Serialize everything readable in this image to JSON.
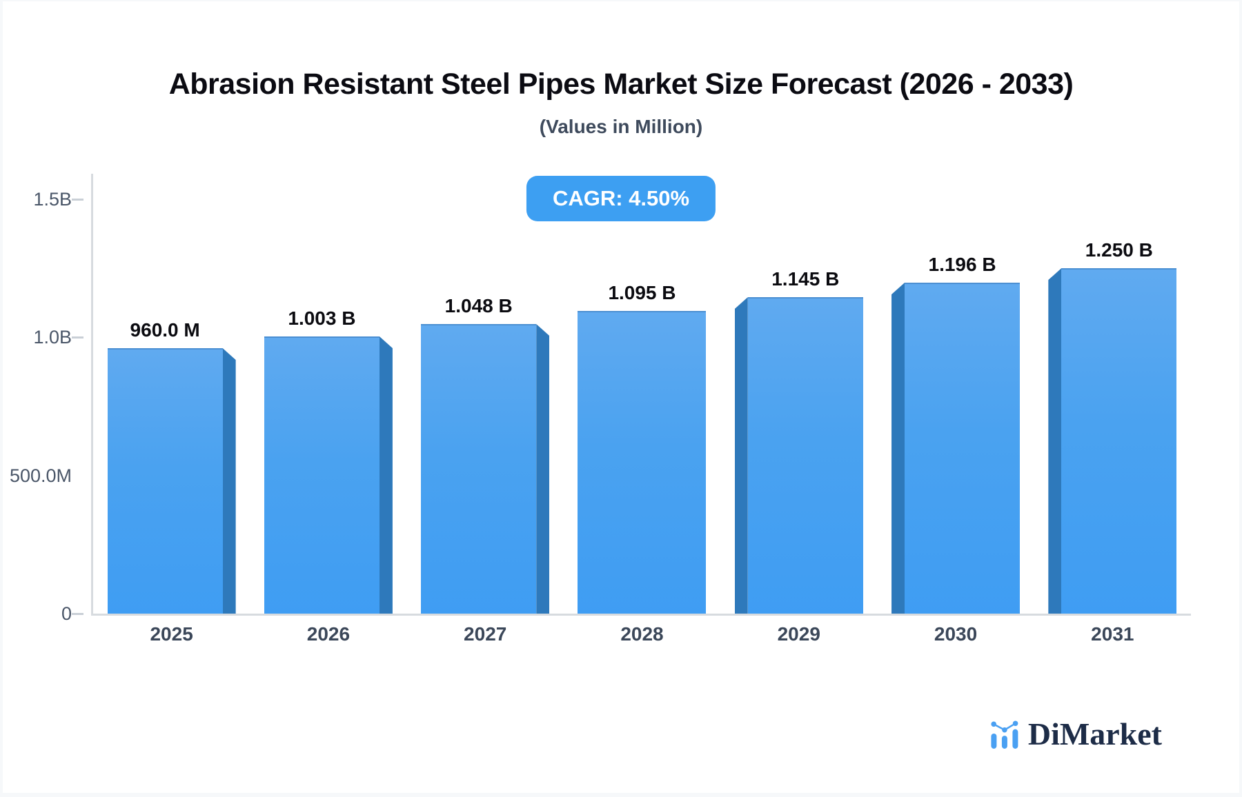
{
  "chart_data": {
    "type": "bar",
    "title": "Abrasion Resistant Steel Pipes Market Size Forecast (2026 - 2033)",
    "subtitle": "(Values in Million)",
    "cagr_label": "CAGR: 4.50%",
    "cagr_percent": 4.5,
    "categories": [
      "2025",
      "2026",
      "2027",
      "2028",
      "2029",
      "2030",
      "2031"
    ],
    "values_millions": [
      960.0,
      1003,
      1048,
      1095,
      1145,
      1196,
      1250
    ],
    "bar_labels": [
      "960.0 M",
      "1.003 B",
      "1.048 B",
      "1.095 B",
      "1.145 B",
      "1.196 B",
      "1.250 B"
    ],
    "xlabel": "",
    "ylabel": "",
    "ylim_millions": [
      0,
      1500
    ],
    "y_ticks": [
      {
        "label": "1.5B",
        "value": 1500,
        "dash": true
      },
      {
        "label": "1.0B",
        "value": 1000,
        "dash": true
      },
      {
        "label": "500.0M",
        "value": 500,
        "dash": false
      },
      {
        "label": "0",
        "value": 0,
        "dash": true
      }
    ],
    "grid": false,
    "legend": "none",
    "bar_style": "3d-perspective; depth face points toward chart center (right side for 2025-2027, none for 2028, left side for 2029-2031)"
  },
  "logo": {
    "text": "DiMarket"
  },
  "colors": {
    "bar_face_top": "#60AAF0",
    "bar_face_bottom": "#3F9DF3",
    "bar_depth_side": "#2E79BB",
    "cagr_badge_bg": "#3D9FF2",
    "cagr_badge_text": "#FFFFFF",
    "axis_line": "#D7DBDF",
    "title_text": "#0B0B12",
    "subtitle_text": "#3E4A5C",
    "axis_tick_text": "#4A5668",
    "year_label_text": "#3B4759",
    "bar_value_text": "#0B0B10",
    "logo_blue": "#4AA0F2",
    "logo_navy": "#1D2C47",
    "page_bg": "#F6F8FA",
    "card_bg": "#FFFFFF"
  }
}
